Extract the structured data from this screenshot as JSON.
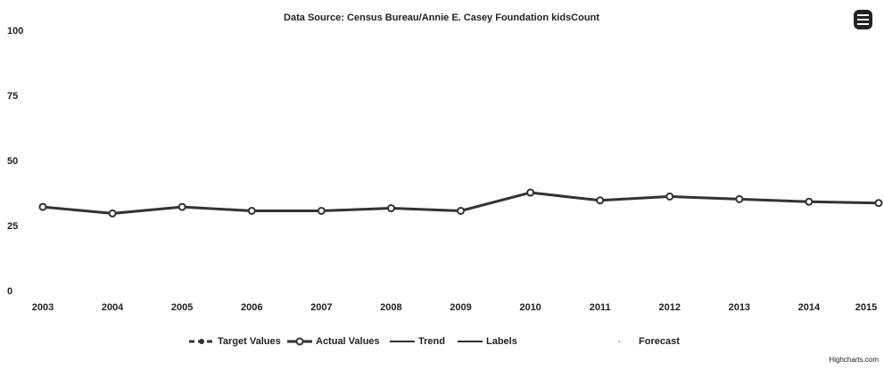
{
  "chart_data": {
    "type": "line",
    "title": "Data Source: Census Bureau/Annie E. Casey Foundation kidsCount",
    "categories": [
      "2003",
      "2004",
      "2005",
      "2006",
      "2007",
      "2008",
      "2009",
      "2010",
      "2011",
      "2012",
      "2013",
      "2014",
      "2015"
    ],
    "series": [
      {
        "name": "Actual Values",
        "color": "#333333",
        "values": [
          32.5,
          30,
          32.5,
          31,
          31,
          32,
          31,
          38,
          35,
          36.5,
          35.5,
          34.5,
          34
        ]
      }
    ],
    "legend": [
      "Target Values",
      "Actual Values",
      "Trend",
      "Labels",
      "Forecast"
    ],
    "ylim": [
      0,
      100
    ],
    "yticks": [
      0,
      25,
      50,
      75,
      100
    ],
    "credits": "Highcharts.com"
  }
}
